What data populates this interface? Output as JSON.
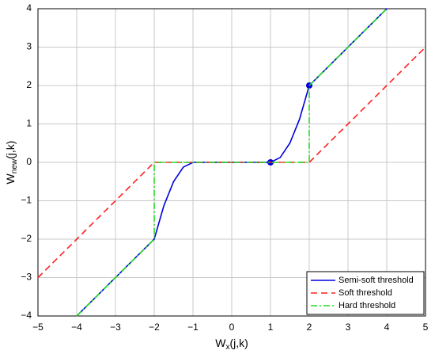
{
  "chart_data": {
    "type": "line",
    "xlabel": {
      "main": "W",
      "sub": "x",
      "rest": "(j,k)"
    },
    "ylabel": {
      "main": "W",
      "sub": "new",
      "rest": "(j,k)"
    },
    "xlim": [
      -5,
      5
    ],
    "ylim": [
      -4,
      4
    ],
    "xticks": [
      {
        "value": -5,
        "label": "−5"
      },
      {
        "value": -4,
        "label": "−4"
      },
      {
        "value": -3,
        "label": "−3"
      },
      {
        "value": -2,
        "label": "−2"
      },
      {
        "value": -1,
        "label": "−1"
      },
      0,
      1,
      2,
      3,
      4,
      5
    ],
    "yticks": [
      {
        "value": -4,
        "label": "−4"
      },
      {
        "value": -3,
        "label": "−3"
      },
      {
        "value": -2,
        "label": "−2"
      },
      {
        "value": -1,
        "label": "−1"
      },
      0,
      1,
      2,
      3,
      4
    ],
    "grid": true,
    "legend": "lower right",
    "series": [
      {
        "name": "Semi-soft threshold",
        "color": "#0000dd",
        "dash": "solid",
        "x": [
          -4,
          -2,
          -1.75,
          -1.5,
          -1.25,
          -1,
          1,
          1.25,
          1.5,
          1.75,
          2,
          4
        ],
        "values": [
          -4,
          -2,
          -1.125,
          -0.5,
          -0.125,
          0,
          0,
          0.125,
          0.5,
          1.125,
          2,
          4
        ],
        "marker_x": [
          1,
          2
        ],
        "marker_y": [
          0,
          2
        ]
      },
      {
        "name": "Soft threshold",
        "color": "#ff2020",
        "dash": "dashed",
        "x": [
          -5,
          -2,
          2,
          5
        ],
        "values": [
          -3,
          0,
          0,
          3
        ]
      },
      {
        "name": "Hard threshold",
        "color": "#22dd22",
        "dash": "dashdot",
        "x": [
          -4,
          -2,
          -2,
          2,
          2,
          4
        ],
        "values": [
          -4,
          -2,
          0,
          0,
          2,
          4
        ]
      }
    ]
  }
}
